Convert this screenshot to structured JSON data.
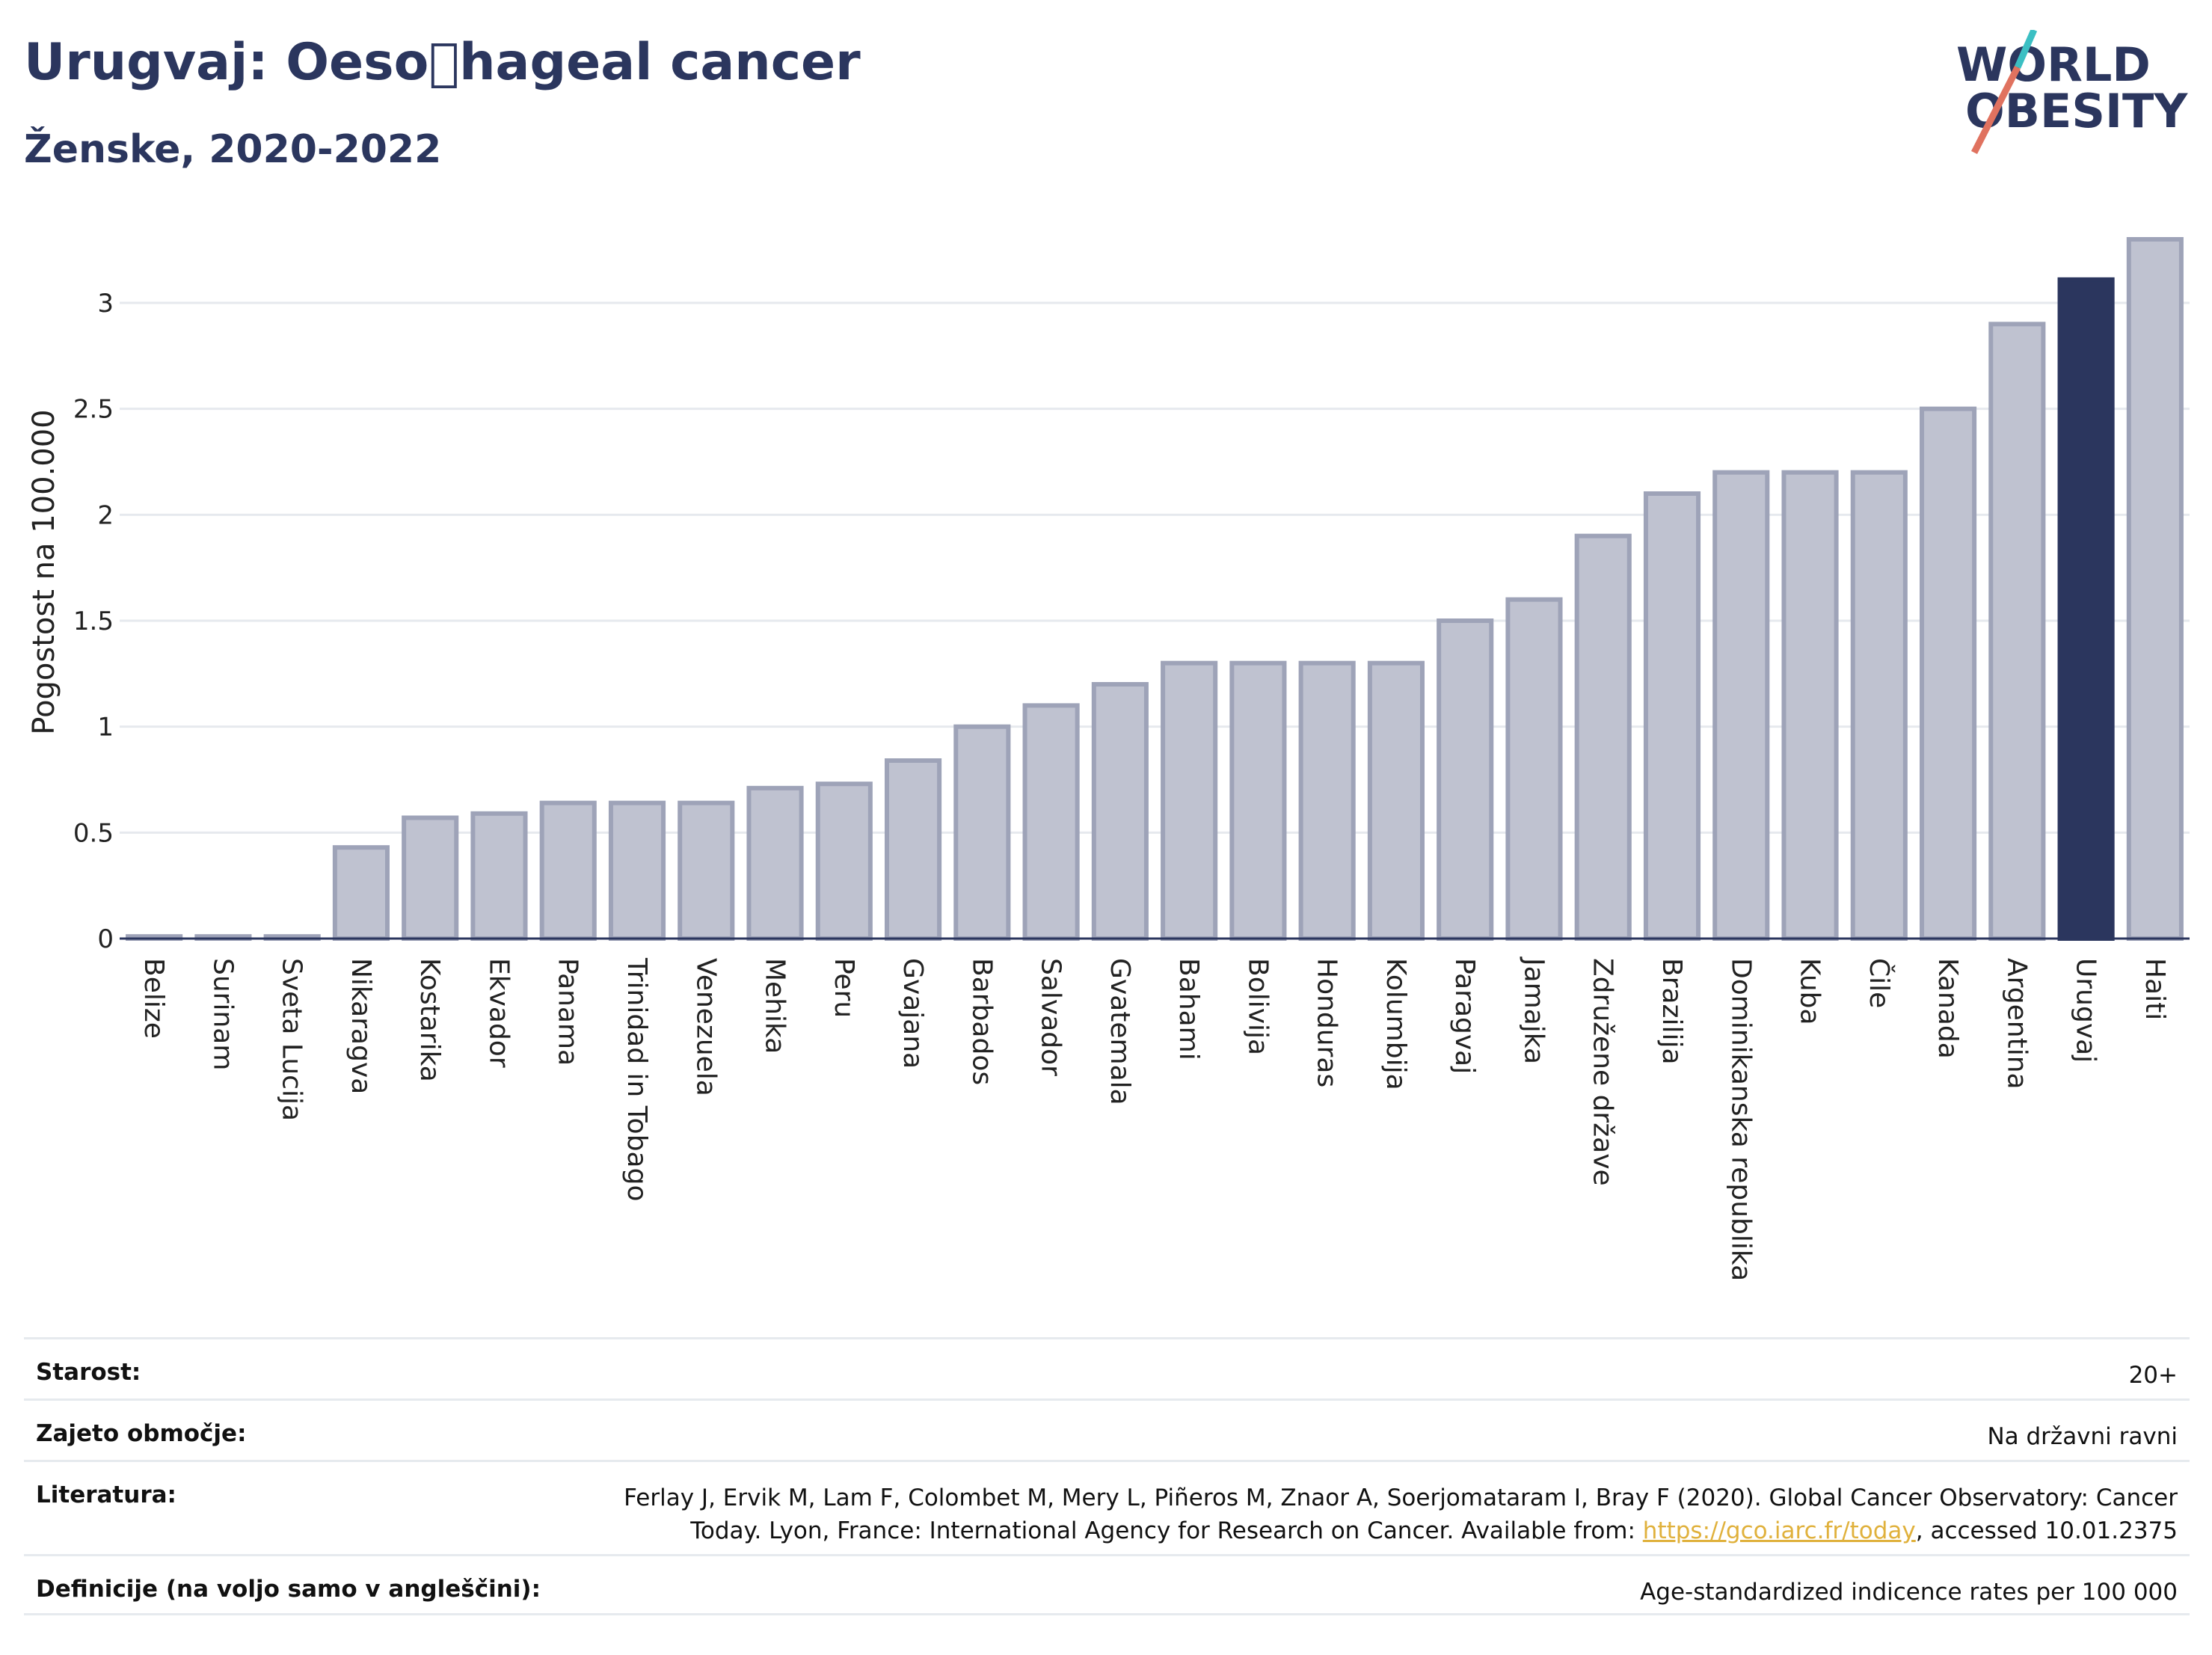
{
  "header": {
    "title": "Urugvaj: Oeso\u0000hageal cancer",
    "subtitle": "Ženske, 2020-2022"
  },
  "logo": {
    "line1": "WORLD",
    "line2": "OBESITY",
    "accent_color": "#e0725f",
    "accent2_color": "#3bbfc3"
  },
  "chart_data": {
    "type": "bar",
    "ylabel": "Pogostost na 100.000",
    "xlabel": "",
    "ylim": [
      0,
      3.3
    ],
    "yticks": [
      0,
      0.5,
      1,
      1.5,
      2,
      2.5,
      3
    ],
    "ytick_labels": [
      "0",
      "0.5",
      "1",
      "1.5",
      "2",
      "2.5",
      "3"
    ],
    "grid": true,
    "highlight": "Urugvaj",
    "bar_color": "#bfc2d0",
    "bar_edge_color": "#9ea3b8",
    "highlight_color": "#2b365e",
    "categories": [
      "Belize",
      "Surinam",
      "Sveta Lucija",
      "Nikaragva",
      "Kostarika",
      "Ekvador",
      "Panama",
      "Trinidad in Tobago",
      "Venezuela",
      "Mehika",
      "Peru",
      "Gvajana",
      "Barbados",
      "Salvador",
      "Gvatemala",
      "Bahami",
      "Bolivija",
      "Honduras",
      "Kolumbija",
      "Paragvaj",
      "Jamajka",
      "Združene države",
      "Brazilija",
      "Dominikanska republika",
      "Kuba",
      "Čile",
      "Kanada",
      "Argentina",
      "Urugvaj",
      "Haiti"
    ],
    "values": [
      0.01,
      0.01,
      0.01,
      0.43,
      0.57,
      0.59,
      0.64,
      0.64,
      0.64,
      0.71,
      0.73,
      0.84,
      1.0,
      1.1,
      1.2,
      1.3,
      1.3,
      1.3,
      1.3,
      1.5,
      1.6,
      1.9,
      2.1,
      2.2,
      2.2,
      2.2,
      2.5,
      2.9,
      3.11,
      3.3
    ]
  },
  "info": {
    "age_label": "Starost:",
    "age_value": "20+",
    "area_label": "Zajeto območje:",
    "area_value": "Na državni ravni",
    "ref_label": "Literatura:",
    "ref_text_1": "Ferlay J, Ervik M, Lam F, Colombet M, Mery L, Piñeros M, Znaor A, Soerjomataram I, Bray F (2020). Global Cancer Observatory: Cancer",
    "ref_text_2": "Today. Lyon, France: International Agency for Research on Cancer. Available from: ",
    "ref_link": "https://gco.iarc.fr/today",
    "ref_text_3": ", accessed 10.01.2375",
    "def_label": "Definicije (na voljo samo v angleščini):",
    "def_value": "Age-standardized indicence rates per 100 000"
  }
}
